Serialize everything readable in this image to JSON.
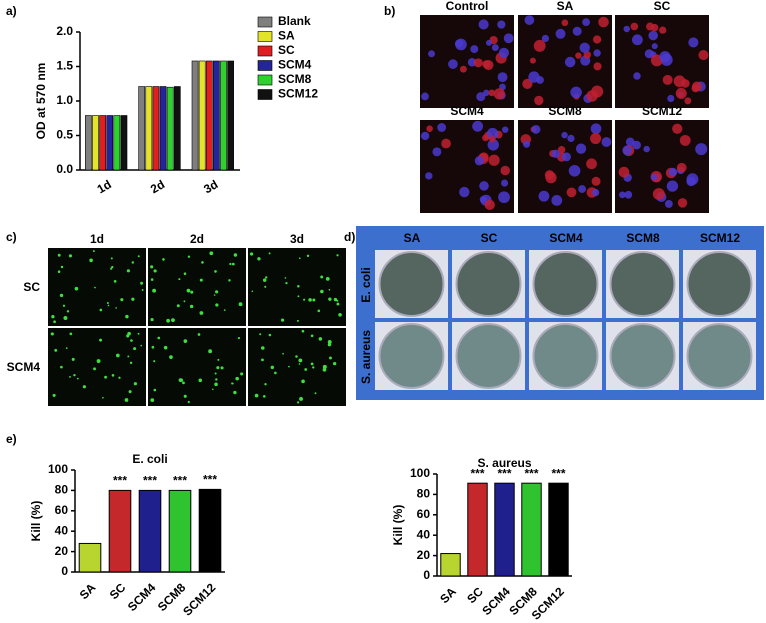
{
  "chart_data": [
    {
      "type": "bar",
      "y_label": "OD at 570 nm",
      "categories": [
        "1d",
        "2d",
        "3d"
      ],
      "series": [
        {
          "name": "Blank",
          "color": "#7f7f7f",
          "values": [
            0.79,
            1.21,
            1.58
          ]
        },
        {
          "name": "SA",
          "color": "#e3e32a",
          "values": [
            0.79,
            1.21,
            1.58
          ]
        },
        {
          "name": "SC",
          "color": "#e02020",
          "values": [
            0.79,
            1.21,
            1.58
          ]
        },
        {
          "name": "SCM4",
          "color": "#24249c",
          "values": [
            0.79,
            1.21,
            1.58
          ]
        },
        {
          "name": "SCM8",
          "color": "#2ed12e",
          "values": [
            0.79,
            1.2,
            1.58
          ]
        },
        {
          "name": "SCM12",
          "color": "#111111",
          "values": [
            0.79,
            1.21,
            1.58
          ]
        }
      ],
      "ylim": [
        0,
        2
      ],
      "yticks": [
        {
          "value": 0,
          "label": "0.0"
        },
        0.5,
        {
          "value": 1,
          "label": "1.0"
        },
        1.5,
        {
          "value": 2,
          "label": "2.0"
        }
      ],
      "legend": "right"
    },
    {
      "type": "bar",
      "title": "E. coli",
      "y_label": "Kill (%)",
      "categories": [
        "SA",
        "SC",
        "SCM4",
        "SCM8",
        "SCM12"
      ],
      "values": [
        28,
        80,
        80,
        80,
        81
      ],
      "colors": [
        "#b8d42e",
        "#c4282a",
        "#1f1f8e",
        "#2fc42f",
        "#000000"
      ],
      "annotations": [
        null,
        "***",
        "***",
        "***",
        "***"
      ],
      "ylim": [
        0,
        100
      ],
      "yticks": [
        0,
        20,
        40,
        60,
        80,
        100
      ]
    },
    {
      "type": "bar",
      "title": "S. aureus",
      "y_label": "Kill (%)",
      "categories": [
        "SA",
        "SC",
        "SCM4",
        "SCM8",
        "SCM12"
      ],
      "values": [
        22,
        91,
        91,
        91,
        91
      ],
      "colors": [
        "#b8d42e",
        "#c4282a",
        "#1f1f8e",
        "#2fc42f",
        "#000000"
      ],
      "annotations": [
        null,
        "***",
        "***",
        "***",
        "***"
      ],
      "ylim": [
        0,
        100
      ],
      "yticks": [
        0,
        20,
        40,
        60,
        80,
        100
      ]
    }
  ],
  "panels": {
    "labels": [
      "a)",
      "b)",
      "c)",
      "d)",
      "e)"
    ],
    "b": {
      "titles": [
        "Control",
        "SA",
        "SC",
        "SCM4",
        "SCM8",
        "SCM12"
      ]
    },
    "c": {
      "columns": [
        "1d",
        "2d",
        "3d"
      ],
      "rows": [
        "SC",
        "SCM4"
      ]
    },
    "d": {
      "columns": [
        "SA",
        "SC",
        "SCM4",
        "SCM8",
        "SCM12"
      ],
      "rows": [
        "E. coli",
        "S. aureus"
      ]
    }
  }
}
